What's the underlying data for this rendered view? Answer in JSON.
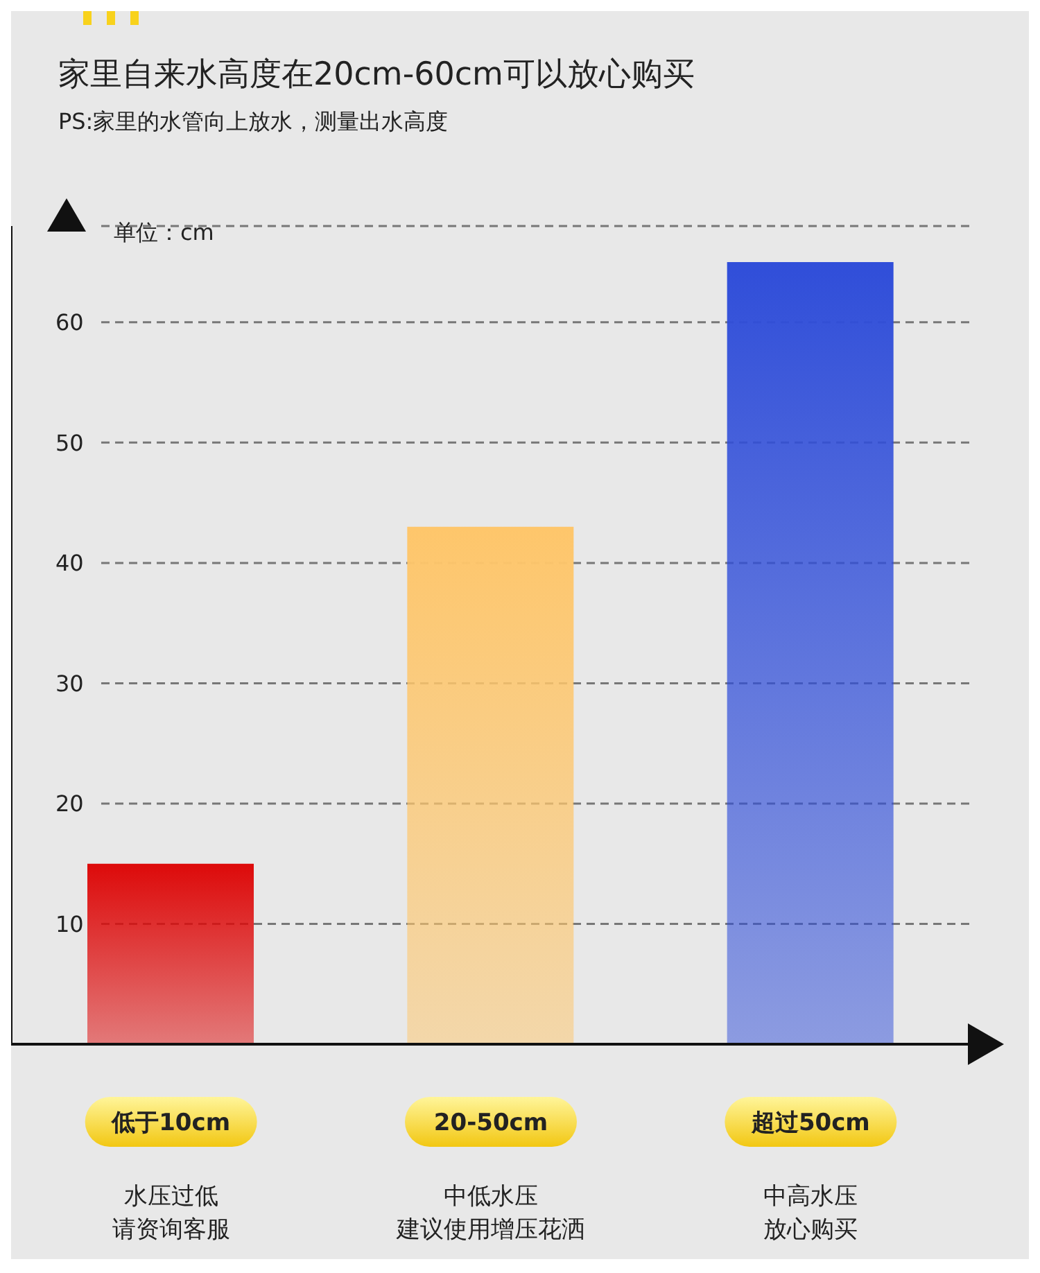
{
  "chart_data": {
    "type": "bar",
    "title": "家里自来水高度在20cm-60cm可以放心购买",
    "subtitle": "PS:家里的水管向上放水，测量出水高度",
    "ylabel": "单位：cm",
    "categories": [
      "低于10cm",
      "20-50cm",
      "超过50cm"
    ],
    "values": [
      15,
      43,
      65
    ],
    "colors": [
      "#dd0a0a",
      "#fec66b",
      "#304ed9"
    ],
    "ylim": [
      0,
      68
    ],
    "yticks": [
      10,
      20,
      30,
      40,
      50,
      60
    ],
    "grid": "y",
    "annotations": [
      "水压过低",
      "请资询客服",
      "中低水压",
      "建议使用增压花洒",
      "中高水压",
      "放心购买"
    ]
  }
}
